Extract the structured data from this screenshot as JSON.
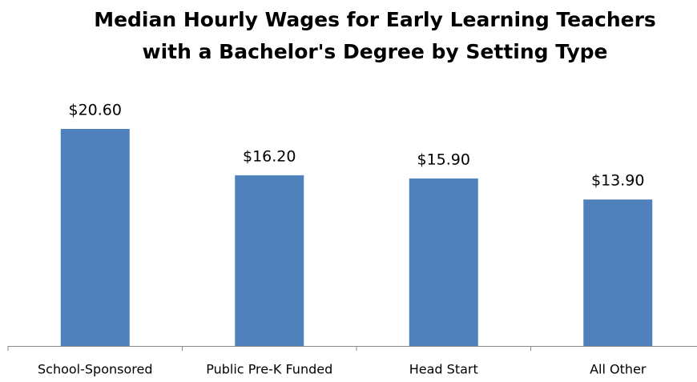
{
  "chart_data": {
    "type": "bar",
    "title": [
      "Median Hourly Wages for Early Learning Teachers",
      "with a Bachelor's Degree by Setting Type"
    ],
    "categories": [
      "School-Sponsored",
      "Public Pre-K Funded",
      "Head Start",
      "All Other"
    ],
    "values": [
      20.6,
      16.2,
      15.9,
      13.9
    ],
    "value_labels": [
      "$20.60",
      "$16.20",
      "$15.90",
      "$13.90"
    ],
    "color": "#4f81bd"
  }
}
